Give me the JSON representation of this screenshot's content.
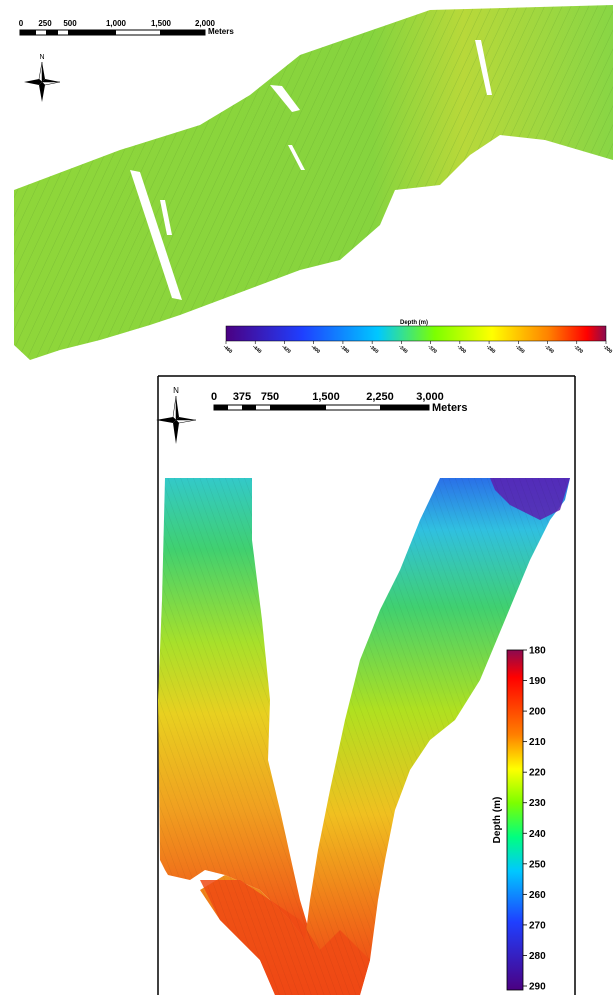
{
  "map_top": {
    "scale_bar": {
      "ticks": [
        "0",
        "250",
        "500",
        "1,000",
        "1,500",
        "2,000"
      ],
      "unit": "Meters"
    },
    "north": "N",
    "legend": {
      "title": "Depth (m)",
      "ticks": [
        "-460",
        "-440",
        "-420",
        "-400",
        "-380",
        "-360",
        "-340",
        "-320",
        "-300",
        "-280",
        "-260",
        "-240",
        "-220",
        "-200"
      ],
      "colors": [
        "#4b0082",
        "#1f3fff",
        "#00c8ff",
        "#7cff00",
        "#ffff00",
        "#ff8000",
        "#ff0000",
        "#8b0a50"
      ]
    },
    "survey_color": "#8ed43c"
  },
  "map_bottom": {
    "scale_bar": {
      "ticks": [
        "0",
        "375",
        "750",
        "1,500",
        "2,250",
        "3,000"
      ],
      "unit": "Meters"
    },
    "north": "N",
    "legend": {
      "title": "Depth (m)",
      "ticks": [
        "180",
        "190",
        "200",
        "210",
        "220",
        "230",
        "240",
        "250",
        "260",
        "270",
        "280",
        "290"
      ],
      "colors": [
        "#8b0a50",
        "#ff0000",
        "#ff8000",
        "#ffff00",
        "#7cff00",
        "#00ff80",
        "#00c8ff",
        "#1f3fff",
        "#4b0082"
      ]
    }
  }
}
